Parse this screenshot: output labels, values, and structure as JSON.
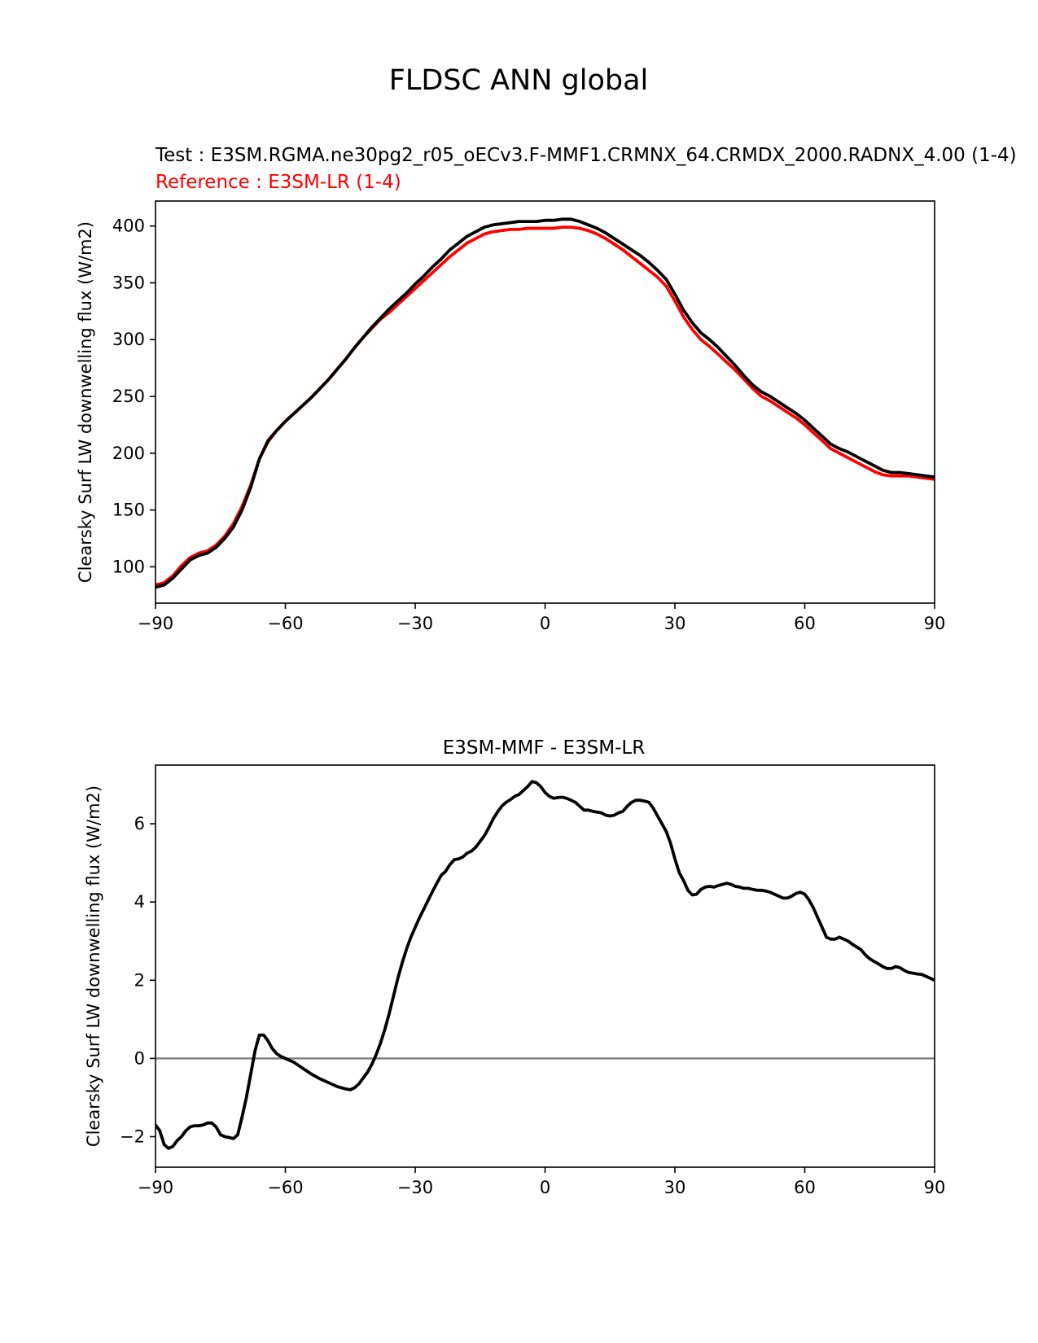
{
  "figure_title": "FLDSC ANN global",
  "colors": {
    "test": "#000000",
    "reference": "#ff0000",
    "zero_line": "#808080"
  },
  "chart_data": [
    {
      "type": "line",
      "title_test": "Test : E3SM.RGMA.ne30pg2_r05_oECv3.F-MMF1.CRMNX_64.CRMDX_2000.RADNX_4.00 (1-4)",
      "title_reference": "Reference : E3SM-LR (1-4)",
      "xlabel": "",
      "ylabel": "Clearsky Surf LW downwelling flux (W/m2)",
      "xlim": [
        -90,
        90
      ],
      "ylim": [
        68,
        422
      ],
      "xticks": [
        -90,
        -60,
        -30,
        0,
        30,
        60,
        90
      ],
      "xtick_labels": [
        "−90",
        "−60",
        "−30",
        "0",
        "30",
        "60",
        "90"
      ],
      "yticks": [
        100,
        150,
        200,
        250,
        300,
        350,
        400
      ],
      "ytick_labels": [
        "100",
        "150",
        "200",
        "250",
        "300",
        "350",
        "400"
      ],
      "series": [
        {
          "name": "Reference : E3SM-LR (1-4)",
          "color": "#ff0000",
          "x": [
            -90,
            -88,
            -86,
            -84,
            -82,
            -80,
            -78,
            -76,
            -74,
            -72,
            -70,
            -68,
            -66,
            -64,
            -62,
            -60,
            -58,
            -56,
            -54,
            -52,
            -50,
            -48,
            -46,
            -44,
            -42,
            -40,
            -38,
            -36,
            -34,
            -32,
            -30,
            -28,
            -26,
            -24,
            -22,
            -20,
            -18,
            -16,
            -14,
            -12,
            -10,
            -8,
            -6,
            -4,
            -2,
            0,
            2,
            4,
            6,
            8,
            10,
            12,
            14,
            16,
            18,
            20,
            22,
            24,
            26,
            28,
            30,
            32,
            34,
            36,
            38,
            40,
            42,
            44,
            46,
            48,
            50,
            52,
            54,
            56,
            58,
            60,
            62,
            64,
            66,
            68,
            70,
            72,
            74,
            76,
            78,
            80,
            82,
            84,
            86,
            88,
            90
          ],
          "y": [
            84,
            86,
            92,
            101,
            108,
            112,
            114,
            119,
            127,
            138,
            153,
            172,
            195,
            210,
            220,
            228,
            235,
            242,
            249,
            257,
            265,
            274,
            283,
            293,
            302,
            310,
            318,
            324,
            331,
            338,
            345,
            352,
            359,
            366,
            373,
            379,
            385,
            389,
            393,
            395,
            396,
            397,
            397,
            398,
            398,
            398,
            398,
            399,
            399,
            398,
            396,
            393,
            389,
            384,
            379,
            373,
            367,
            361,
            355,
            347,
            334,
            320,
            309,
            300,
            294,
            287,
            280,
            273,
            265,
            257,
            250,
            246,
            241,
            236,
            231,
            225,
            218,
            211,
            204,
            200,
            196,
            192,
            188,
            184,
            181,
            180,
            180,
            180,
            179,
            178,
            177
          ]
        },
        {
          "name": "Test : E3SM.RGMA.ne30pg2_r05_oECv3.F-MMF1.CRMNX_64.CRMDX_2000.RADNX_4.00 (1-4)",
          "color": "#000000",
          "x": [
            -90,
            -88,
            -86,
            -84,
            -82,
            -80,
            -78,
            -76,
            -74,
            -72,
            -70,
            -68,
            -66,
            -64,
            -62,
            -60,
            -58,
            -56,
            -54,
            -52,
            -50,
            -48,
            -46,
            -44,
            -42,
            -40,
            -38,
            -36,
            -34,
            -32,
            -30,
            -28,
            -26,
            -24,
            -22,
            -20,
            -18,
            -16,
            -14,
            -12,
            -10,
            -8,
            -6,
            -4,
            -2,
            0,
            2,
            4,
            6,
            8,
            10,
            12,
            14,
            16,
            18,
            20,
            22,
            24,
            26,
            28,
            30,
            32,
            34,
            36,
            38,
            40,
            42,
            44,
            46,
            48,
            50,
            52,
            54,
            56,
            58,
            60,
            62,
            64,
            66,
            68,
            70,
            72,
            74,
            76,
            78,
            80,
            82,
            84,
            86,
            88,
            90
          ],
          "y": [
            82,
            84,
            90,
            98,
            106,
            110,
            112,
            117,
            125,
            135,
            150,
            170,
            195,
            211,
            220,
            228,
            235,
            242,
            249,
            257,
            265,
            274,
            283,
            293,
            302,
            311,
            319,
            327,
            334,
            341,
            349,
            356,
            364,
            371,
            379,
            385,
            391,
            395,
            399,
            401,
            402,
            403,
            404,
            404,
            404,
            405,
            405,
            406,
            406,
            404,
            401,
            398,
            394,
            389,
            384,
            379,
            374,
            368,
            361,
            353,
            340,
            326,
            315,
            306,
            300,
            293,
            285,
            277,
            268,
            260,
            254,
            250,
            245,
            240,
            235,
            229,
            222,
            215,
            208,
            204,
            201,
            197,
            193,
            189,
            185,
            183,
            183,
            182,
            181,
            180,
            179
          ]
        }
      ]
    },
    {
      "type": "line",
      "title": "E3SM-MMF - E3SM-LR",
      "xlabel": "",
      "ylabel": "Clearsky Surf LW downwelling flux (W/m2)",
      "xlim": [
        -90,
        90
      ],
      "ylim": [
        -2.78,
        7.5
      ],
      "xticks": [
        -90,
        -60,
        -30,
        0,
        30,
        60,
        90
      ],
      "xtick_labels": [
        "−90",
        "−60",
        "−30",
        "0",
        "30",
        "60",
        "90"
      ],
      "yticks": [
        -2,
        0,
        2,
        4,
        6
      ],
      "ytick_labels": [
        "−2",
        "0",
        "2",
        "4",
        "6"
      ],
      "zero_line": 0,
      "series": [
        {
          "name": "E3SM-MMF - E3SM-LR",
          "color": "#000000",
          "x": [
            -90,
            -89,
            -88,
            -87,
            -86,
            -85,
            -84,
            -83,
            -82,
            -81,
            -80,
            -79,
            -78,
            -77,
            -76,
            -75,
            -74,
            -73,
            -72,
            -71,
            -70,
            -69,
            -68,
            -67,
            -66,
            -65,
            -64,
            -63,
            -62,
            -61,
            -60,
            -58,
            -56,
            -54,
            -52,
            -50,
            -48,
            -46,
            -45,
            -44,
            -43,
            -42,
            -41,
            -40,
            -39,
            -38,
            -37,
            -36,
            -35,
            -34,
            -33,
            -32,
            -31,
            -30,
            -29,
            -28,
            -27,
            -26,
            -25,
            -24,
            -23,
            -22,
            -21,
            -20,
            -19,
            -18,
            -17,
            -16,
            -15,
            -14,
            -13,
            -12,
            -11,
            -10,
            -9,
            -8,
            -7,
            -6,
            -5,
            -4,
            -3,
            -2,
            -1,
            0,
            1,
            2,
            3,
            4,
            5,
            6,
            7,
            8,
            9,
            10,
            11,
            12,
            13,
            14,
            15,
            16,
            17,
            18,
            19,
            20,
            21,
            22,
            23,
            24,
            25,
            26,
            27,
            28,
            29,
            30,
            31,
            32,
            33,
            34,
            35,
            36,
            37,
            38,
            39,
            40,
            41,
            42,
            43,
            44,
            45,
            46,
            47,
            48,
            49,
            50,
            51,
            52,
            53,
            54,
            55,
            56,
            57,
            58,
            59,
            60,
            61,
            62,
            63,
            64,
            65,
            66,
            67,
            68,
            69,
            70,
            71,
            72,
            73,
            74,
            75,
            76,
            77,
            78,
            79,
            80,
            81,
            82,
            83,
            84,
            85,
            86,
            87,
            88,
            89,
            90
          ],
          "y": [
            -1.7,
            -1.85,
            -2.2,
            -2.3,
            -2.25,
            -2.1,
            -2.0,
            -1.85,
            -1.75,
            -1.72,
            -1.72,
            -1.7,
            -1.65,
            -1.65,
            -1.75,
            -1.95,
            -2.0,
            -2.02,
            -2.05,
            -1.95,
            -1.5,
            -1.0,
            -0.4,
            0.2,
            0.6,
            0.6,
            0.45,
            0.25,
            0.12,
            0.05,
            0.0,
            -0.1,
            -0.25,
            -0.4,
            -0.52,
            -0.62,
            -0.72,
            -0.78,
            -0.8,
            -0.75,
            -0.65,
            -0.5,
            -0.35,
            -0.15,
            0.1,
            0.4,
            0.75,
            1.15,
            1.6,
            2.05,
            2.45,
            2.8,
            3.1,
            3.35,
            3.6,
            3.82,
            4.05,
            4.27,
            4.48,
            4.68,
            4.78,
            4.95,
            5.08,
            5.1,
            5.15,
            5.25,
            5.3,
            5.4,
            5.55,
            5.7,
            5.9,
            6.12,
            6.3,
            6.45,
            6.55,
            6.62,
            6.7,
            6.75,
            6.85,
            6.95,
            7.08,
            7.05,
            6.95,
            6.8,
            6.7,
            6.65,
            6.67,
            6.68,
            6.65,
            6.6,
            6.55,
            6.45,
            6.35,
            6.35,
            6.32,
            6.3,
            6.28,
            6.22,
            6.2,
            6.22,
            6.28,
            6.32,
            6.45,
            6.55,
            6.6,
            6.6,
            6.58,
            6.55,
            6.4,
            6.2,
            6.0,
            5.8,
            5.5,
            5.1,
            4.75,
            4.55,
            4.3,
            4.18,
            4.2,
            4.32,
            4.38,
            4.4,
            4.38,
            4.42,
            4.45,
            4.48,
            4.45,
            4.4,
            4.38,
            4.35,
            4.35,
            4.32,
            4.3,
            4.3,
            4.28,
            4.25,
            4.2,
            4.15,
            4.1,
            4.1,
            4.15,
            4.22,
            4.25,
            4.2,
            4.05,
            3.85,
            3.6,
            3.35,
            3.1,
            3.05,
            3.05,
            3.1,
            3.05,
            3.0,
            2.92,
            2.85,
            2.78,
            2.65,
            2.55,
            2.48,
            2.42,
            2.35,
            2.3,
            2.3,
            2.35,
            2.32,
            2.25,
            2.2,
            2.18,
            2.16,
            2.15,
            2.1,
            2.05,
            2.0
          ]
        }
      ]
    }
  ]
}
